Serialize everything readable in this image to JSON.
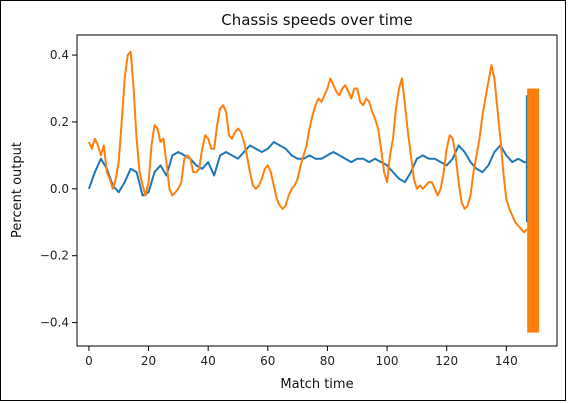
{
  "chart_data": {
    "type": "line",
    "title": "Chassis speeds over time",
    "xlabel": "Match time",
    "ylabel": "Percent output",
    "xlim": [
      -4,
      157
    ],
    "ylim": [
      -0.47,
      0.46
    ],
    "xticks": [
      0,
      20,
      40,
      60,
      80,
      100,
      120,
      140
    ],
    "yticks": [
      -0.4,
      -0.2,
      0.0,
      0.2,
      0.4
    ],
    "xtick_labels": [
      "0",
      "20",
      "40",
      "60",
      "80",
      "100",
      "120",
      "140"
    ],
    "ytick_labels": [
      "−0.4",
      "−0.2",
      "0.0",
      "0.2",
      "0.4"
    ],
    "grid": false,
    "series": [
      {
        "color": "#1f77b4",
        "x": [
          0,
          2,
          4,
          6,
          8,
          10,
          12,
          14,
          16,
          18,
          20,
          22,
          24,
          26,
          28,
          30,
          32,
          34,
          36,
          38,
          40,
          42,
          44,
          46,
          48,
          50,
          52,
          54,
          56,
          58,
          60,
          62,
          64,
          66,
          68,
          70,
          72,
          74,
          76,
          78,
          80,
          82,
          84,
          86,
          88,
          90,
          92,
          94,
          96,
          98,
          100,
          102,
          104,
          106,
          108,
          110,
          112,
          114,
          116,
          118,
          120,
          122,
          124,
          126,
          128,
          130,
          132,
          134,
          136,
          138,
          140,
          142,
          144,
          146,
          147
        ],
        "y": [
          0.0,
          0.05,
          0.09,
          0.06,
          0.01,
          -0.01,
          0.02,
          0.06,
          0.05,
          -0.02,
          -0.01,
          0.05,
          0.07,
          0.04,
          0.1,
          0.11,
          0.1,
          0.09,
          0.07,
          0.06,
          0.08,
          0.04,
          0.1,
          0.11,
          0.1,
          0.09,
          0.11,
          0.13,
          0.12,
          0.11,
          0.12,
          0.14,
          0.13,
          0.12,
          0.1,
          0.09,
          0.09,
          0.1,
          0.09,
          0.09,
          0.1,
          0.11,
          0.1,
          0.09,
          0.08,
          0.09,
          0.09,
          0.08,
          0.09,
          0.08,
          0.07,
          0.05,
          0.03,
          0.02,
          0.05,
          0.09,
          0.1,
          0.09,
          0.09,
          0.08,
          0.07,
          0.09,
          0.13,
          0.11,
          0.08,
          0.06,
          0.05,
          0.07,
          0.11,
          0.13,
          0.1,
          0.08,
          0.09,
          0.08,
          0.08
        ]
      },
      {
        "color": "#ff7f0e",
        "x": [
          0,
          1,
          2,
          3,
          4,
          5,
          6,
          7,
          8,
          9,
          10,
          11,
          12,
          13,
          14,
          15,
          16,
          17,
          18,
          19,
          20,
          21,
          22,
          23,
          24,
          25,
          26,
          27,
          28,
          29,
          30,
          31,
          32,
          33,
          34,
          35,
          36,
          37,
          38,
          39,
          40,
          41,
          42,
          43,
          44,
          45,
          46,
          47,
          48,
          49,
          50,
          51,
          52,
          53,
          54,
          55,
          56,
          57,
          58,
          59,
          60,
          61,
          62,
          63,
          64,
          65,
          66,
          67,
          68,
          69,
          70,
          71,
          72,
          73,
          74,
          75,
          76,
          77,
          78,
          79,
          80,
          81,
          82,
          83,
          84,
          85,
          86,
          87,
          88,
          89,
          90,
          91,
          92,
          93,
          94,
          95,
          96,
          97,
          98,
          99,
          100,
          101,
          102,
          103,
          104,
          105,
          106,
          107,
          108,
          109,
          110,
          111,
          112,
          113,
          114,
          115,
          116,
          117,
          118,
          119,
          120,
          121,
          122,
          123,
          124,
          125,
          126,
          127,
          128,
          129,
          130,
          131,
          132,
          133,
          134,
          135,
          136,
          137,
          138,
          139,
          140,
          141,
          142,
          143,
          144,
          145,
          146,
          147
        ],
        "y": [
          0.14,
          0.12,
          0.15,
          0.13,
          0.1,
          0.13,
          0.05,
          0.03,
          0.0,
          0.03,
          0.08,
          0.2,
          0.33,
          0.4,
          0.41,
          0.3,
          0.15,
          0.05,
          0.01,
          -0.02,
          0.02,
          0.13,
          0.19,
          0.18,
          0.14,
          0.15,
          0.08,
          0.0,
          -0.02,
          -0.01,
          0.0,
          0.02,
          0.09,
          0.1,
          0.09,
          0.05,
          0.05,
          0.06,
          0.12,
          0.16,
          0.15,
          0.12,
          0.12,
          0.19,
          0.24,
          0.25,
          0.23,
          0.16,
          0.15,
          0.17,
          0.18,
          0.17,
          0.14,
          0.1,
          0.05,
          0.01,
          0.0,
          0.01,
          0.03,
          0.06,
          0.07,
          0.05,
          0.01,
          -0.03,
          -0.05,
          -0.06,
          -0.05,
          -0.02,
          0.0,
          0.01,
          0.03,
          0.07,
          0.1,
          0.13,
          0.18,
          0.22,
          0.25,
          0.27,
          0.26,
          0.28,
          0.3,
          0.33,
          0.31,
          0.29,
          0.28,
          0.3,
          0.31,
          0.29,
          0.27,
          0.3,
          0.3,
          0.26,
          0.25,
          0.27,
          0.26,
          0.23,
          0.21,
          0.18,
          0.12,
          0.05,
          0.02,
          0.1,
          0.15,
          0.24,
          0.3,
          0.33,
          0.25,
          0.17,
          0.1,
          0.03,
          0.0,
          0.01,
          0.0,
          0.01,
          0.02,
          0.02,
          0.0,
          -0.02,
          0.0,
          0.05,
          0.12,
          0.16,
          0.15,
          0.1,
          0.02,
          -0.04,
          -0.06,
          -0.05,
          -0.02,
          0.05,
          0.1,
          0.15,
          0.22,
          0.27,
          0.32,
          0.37,
          0.33,
          0.24,
          0.15,
          0.05,
          -0.03,
          -0.06,
          -0.08,
          -0.1,
          -0.11,
          -0.12,
          -0.13,
          -0.12
        ]
      }
    ],
    "noise_band": {
      "color": "#ff7f0e",
      "x_range": [
        147,
        151
      ],
      "y_range": [
        -0.43,
        0.3
      ]
    },
    "edge_line": {
      "color": "#1f77b4",
      "x": 146.9,
      "y_range": [
        -0.1,
        0.28
      ]
    }
  }
}
